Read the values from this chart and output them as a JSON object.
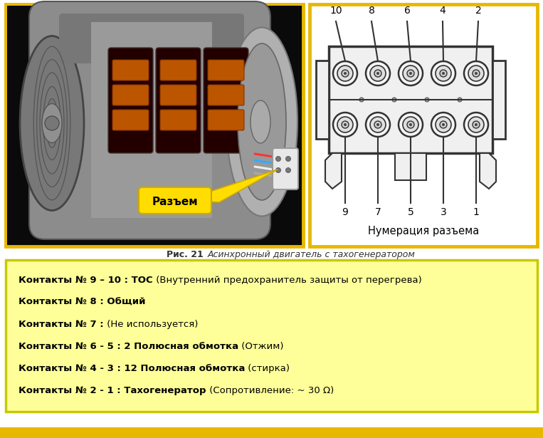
{
  "bg_color": "#ffffff",
  "photo_border_color": "#e8b800",
  "diagram_border_color": "#e8b800",
  "info_box_bg": "#ffff99",
  "info_box_border": "#c8c800",
  "bottom_bar_color": "#e8b800",
  "connector_label": "Разъем",
  "connector_numbering_label": "Нумерация разъема",
  "fig_caption_bold": "Рис. 21",
  "fig_caption_italic": "Асинхронный двигатель с тахогенератором",
  "top_numbers": [
    "10",
    "8",
    "6",
    "4",
    "2"
  ],
  "bottom_numbers": [
    "9",
    "7",
    "5",
    "3",
    "1"
  ],
  "info_lines": [
    {
      "bold": "Контакты № 9 – 10 : ТОС",
      "normal": " (Внутренний предохранитель защиты от перегрева)"
    },
    {
      "bold": "Контакты № 8 : Общий",
      "normal": ""
    },
    {
      "bold": "Контакты № 7 :",
      "normal": " (Не используется)"
    },
    {
      "bold": "Контакты № 6 - 5 : 2 Полюсная обмотка",
      "normal": " (Отжим)"
    },
    {
      "bold": "Контакты № 4 - 3 : 12 Полюсная обмотка",
      "normal": " (стирка)"
    },
    {
      "bold": "Контакты № 2 - 1 : Тахогенератор",
      "normal": " (Сопротивление: ~ 30 Ω)"
    }
  ]
}
